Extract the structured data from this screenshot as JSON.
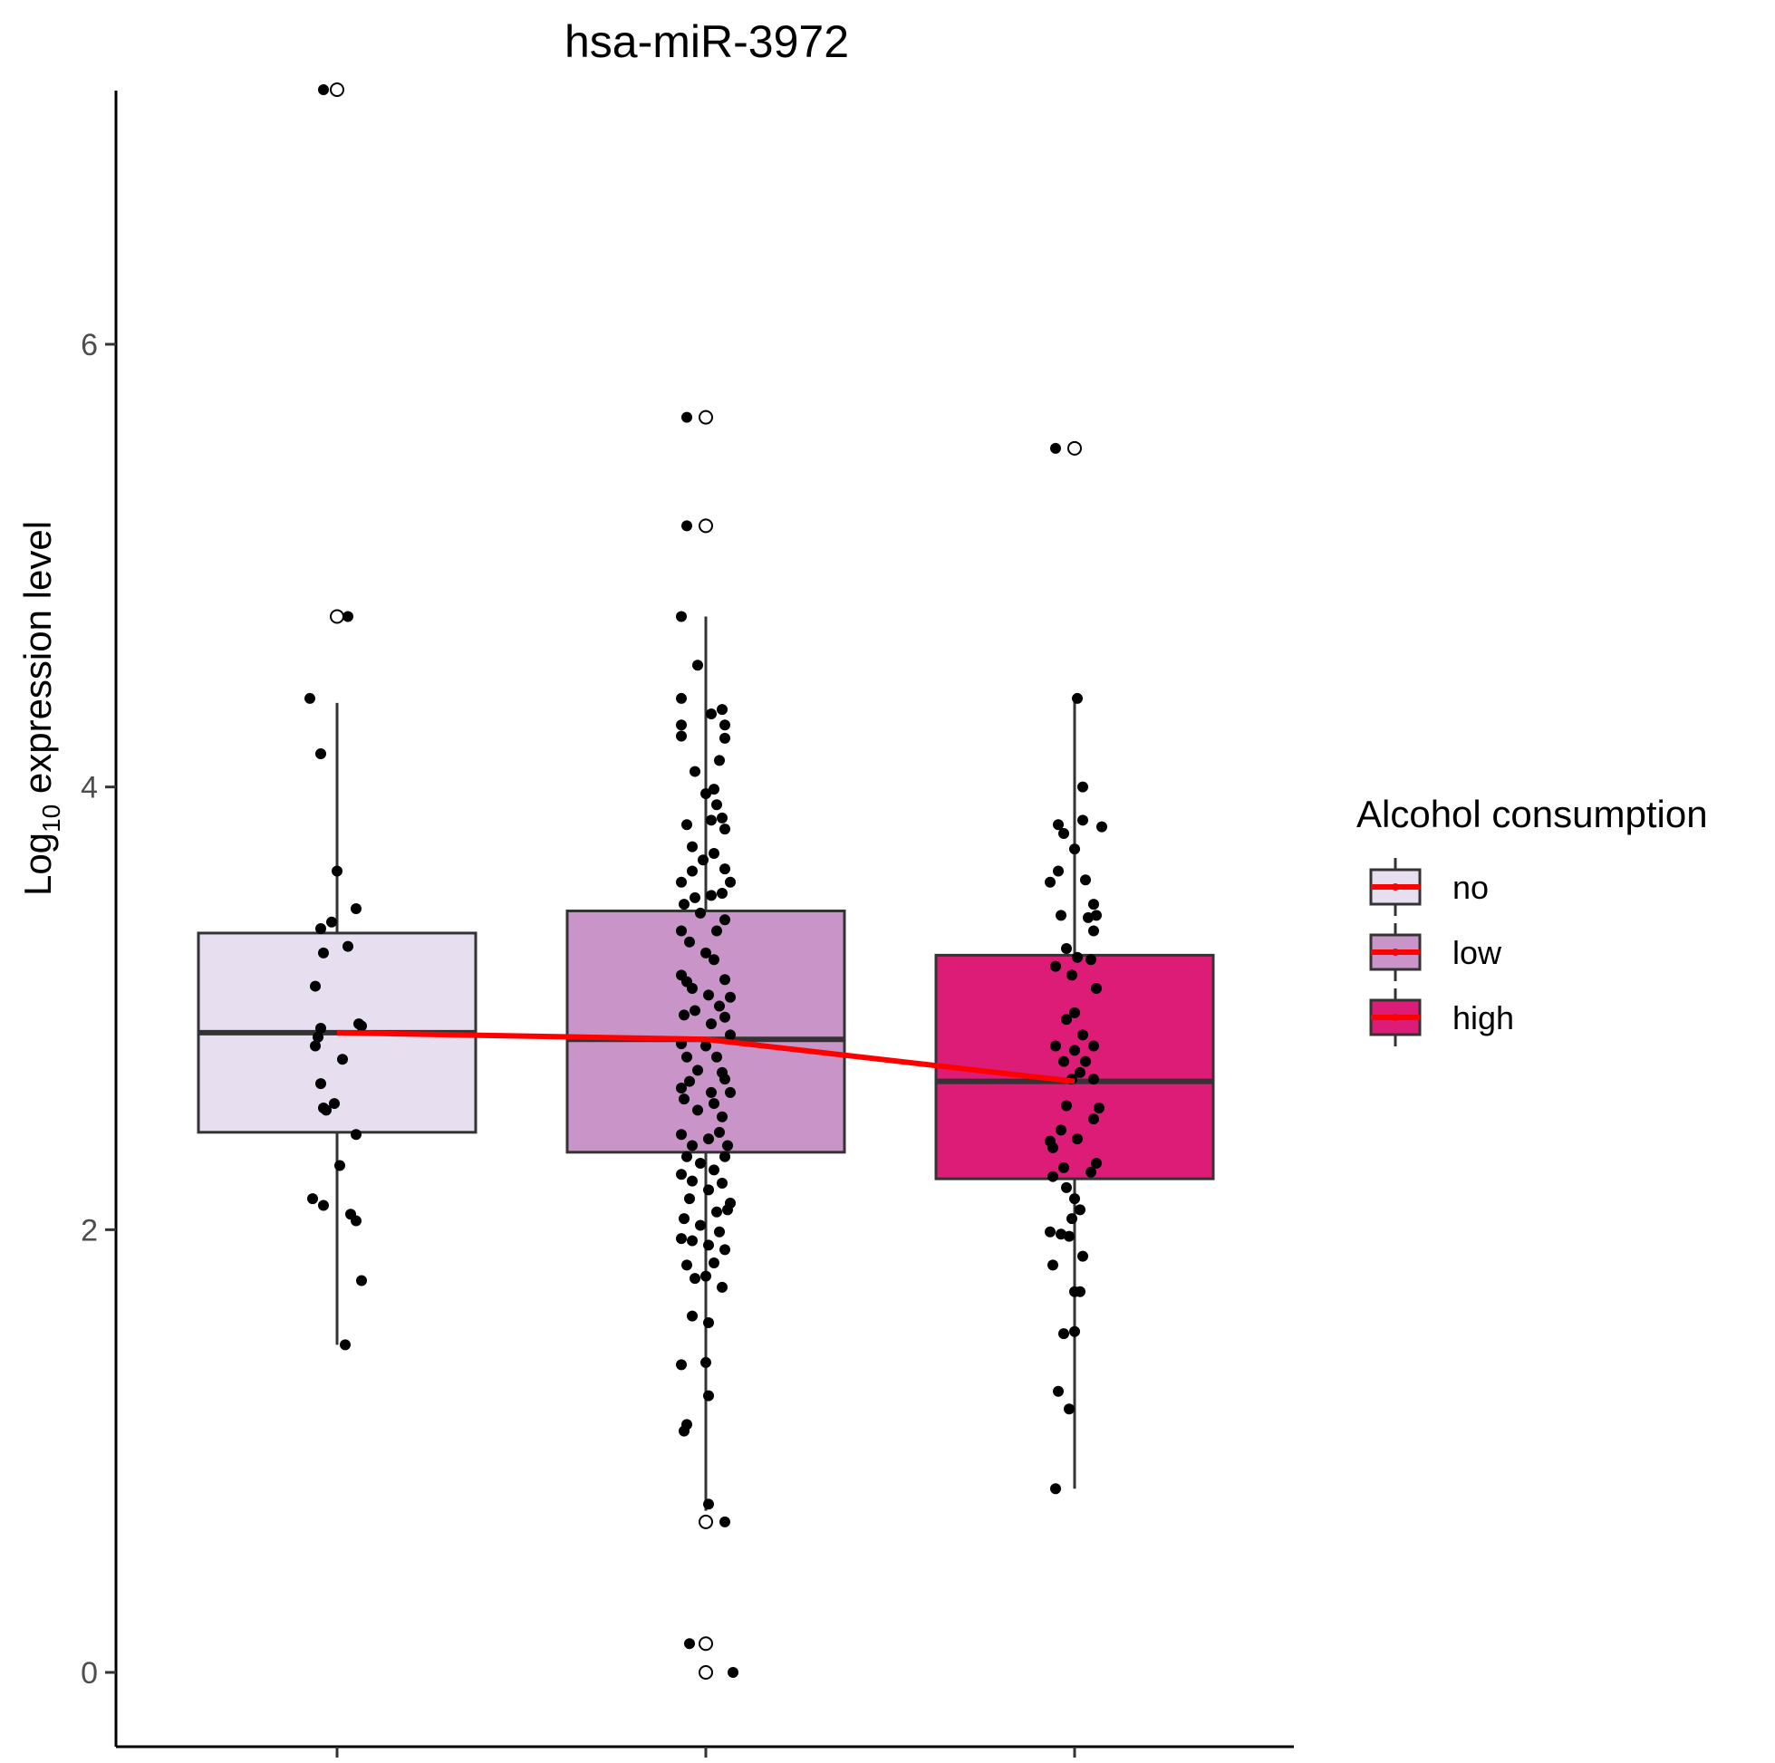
{
  "chart_data": {
    "type": "box",
    "title": "hsa-miR-3972",
    "ylabel_prefix": "Log",
    "ylabel_sub": "10",
    "ylabel_suffix": " expression level",
    "xlabel": "",
    "ylim": [
      -0.35,
      7.35
    ],
    "yticks": [
      0,
      2,
      4,
      6
    ],
    "categories": [
      "no",
      "low",
      "high"
    ],
    "colors": {
      "no": "#e7dfef",
      "low": "#c994c7",
      "high": "#dd1c77",
      "box_border": "#333333",
      "median_line": "#333333",
      "trend_line": "#ff0000",
      "points": "#000000"
    },
    "boxes": [
      {
        "category": "no",
        "q1": 2.44,
        "median": 2.89,
        "q3": 3.34,
        "whisker_low": 1.48,
        "whisker_high": 4.38
      },
      {
        "category": "low",
        "q1": 2.35,
        "median": 2.86,
        "q3": 3.44,
        "whisker_low": 0.73,
        "whisker_high": 4.77
      },
      {
        "category": "high",
        "q1": 2.23,
        "median": 2.67,
        "q3": 3.24,
        "whisker_low": 0.83,
        "whisker_high": 4.4
      }
    ],
    "outliers": [
      {
        "category": "no",
        "values": [
          7.15,
          4.77
        ]
      },
      {
        "category": "low",
        "values": [
          5.67,
          5.18,
          0.68,
          0.13,
          0.0
        ]
      },
      {
        "category": "high",
        "values": [
          5.53
        ]
      }
    ],
    "trend": {
      "categories": [
        "no",
        "low",
        "high"
      ],
      "values": [
        2.89,
        2.86,
        2.67
      ]
    },
    "points": {
      "no": [
        [
          -0.05,
          7.15
        ],
        [
          0.04,
          4.77
        ],
        [
          -0.1,
          4.4
        ],
        [
          -0.06,
          4.15
        ],
        [
          0.0,
          3.62
        ],
        [
          0.07,
          3.45
        ],
        [
          -0.06,
          3.36
        ],
        [
          -0.02,
          3.39
        ],
        [
          -0.05,
          3.25
        ],
        [
          0.04,
          3.28
        ],
        [
          -0.08,
          3.1
        ],
        [
          -0.06,
          2.91
        ],
        [
          0.09,
          2.92
        ],
        [
          0.08,
          2.93
        ],
        [
          -0.08,
          2.83
        ],
        [
          -0.07,
          2.87
        ],
        [
          0.02,
          2.77
        ],
        [
          -0.06,
          2.66
        ],
        [
          -0.05,
          2.55
        ],
        [
          -0.04,
          2.54
        ],
        [
          -0.01,
          2.57
        ],
        [
          0.07,
          2.43
        ],
        [
          0.01,
          2.29
        ],
        [
          -0.09,
          2.14
        ],
        [
          -0.05,
          2.11
        ],
        [
          0.05,
          2.07
        ],
        [
          0.07,
          2.04
        ],
        [
          0.09,
          1.77
        ],
        [
          0.03,
          1.48
        ]
      ],
      "low": [
        [
          -0.07,
          5.67
        ],
        [
          -0.07,
          5.18
        ],
        [
          -0.09,
          4.77
        ],
        [
          -0.03,
          4.55
        ],
        [
          -0.09,
          4.4
        ],
        [
          -0.09,
          4.23
        ],
        [
          -0.09,
          4.28
        ],
        [
          -0.04,
          4.07
        ],
        [
          0.02,
          4.33
        ],
        [
          0.06,
          4.35
        ],
        [
          0.07,
          4.22
        ],
        [
          0.05,
          4.12
        ],
        [
          0.07,
          4.28
        ],
        [
          0.0,
          3.97
        ],
        [
          0.03,
          3.99
        ],
        [
          0.04,
          3.92
        ],
        [
          -0.07,
          3.83
        ],
        [
          -0.05,
          3.73
        ],
        [
          0.02,
          3.85
        ],
        [
          0.06,
          3.86
        ],
        [
          0.07,
          3.81
        ],
        [
          0.03,
          3.7
        ],
        [
          0.07,
          3.63
        ],
        [
          -0.05,
          3.62
        ],
        [
          0.06,
          3.52
        ],
        [
          0.09,
          3.57
        ],
        [
          -0.09,
          3.57
        ],
        [
          -0.08,
          3.47
        ],
        [
          -0.04,
          3.5
        ],
        [
          0.02,
          3.51
        ],
        [
          -0.01,
          3.67
        ],
        [
          -0.02,
          3.43
        ],
        [
          0.04,
          3.35
        ],
        [
          -0.06,
          3.3
        ],
        [
          0.07,
          3.4
        ],
        [
          -0.09,
          3.35
        ],
        [
          0.0,
          3.25
        ],
        [
          0.03,
          3.22
        ],
        [
          0.07,
          3.13
        ],
        [
          -0.07,
          3.12
        ],
        [
          -0.09,
          3.15
        ],
        [
          -0.05,
          3.09
        ],
        [
          0.01,
          3.06
        ],
        [
          0.05,
          3.01
        ],
        [
          0.09,
          3.05
        ],
        [
          -0.08,
          2.97
        ],
        [
          -0.04,
          2.99
        ],
        [
          0.02,
          2.93
        ],
        [
          0.07,
          2.96
        ],
        [
          0.09,
          2.88
        ],
        [
          -0.09,
          2.84
        ],
        [
          -0.07,
          2.78
        ],
        [
          0.0,
          2.83
        ],
        [
          0.04,
          2.78
        ],
        [
          -0.03,
          2.72
        ],
        [
          0.06,
          2.71
        ],
        [
          -0.09,
          2.64
        ],
        [
          -0.06,
          2.67
        ],
        [
          0.02,
          2.62
        ],
        [
          0.07,
          2.68
        ],
        [
          0.09,
          2.62
        ],
        [
          -0.08,
          2.59
        ],
        [
          -0.03,
          2.54
        ],
        [
          0.03,
          2.57
        ],
        [
          0.06,
          2.51
        ],
        [
          -0.09,
          2.43
        ],
        [
          -0.05,
          2.38
        ],
        [
          0.01,
          2.41
        ],
        [
          0.05,
          2.44
        ],
        [
          0.08,
          2.38
        ],
        [
          -0.07,
          2.33
        ],
        [
          -0.02,
          2.3
        ],
        [
          0.03,
          2.27
        ],
        [
          0.07,
          2.33
        ],
        [
          -0.09,
          2.25
        ],
        [
          -0.05,
          2.22
        ],
        [
          0.01,
          2.18
        ],
        [
          0.06,
          2.21
        ],
        [
          0.09,
          2.12
        ],
        [
          -0.06,
          2.14
        ],
        [
          0.04,
          2.08
        ],
        [
          0.08,
          2.09
        ],
        [
          -0.08,
          2.05
        ],
        [
          -0.02,
          2.02
        ],
        [
          0.05,
          1.99
        ],
        [
          -0.09,
          1.96
        ],
        [
          -0.05,
          1.95
        ],
        [
          0.01,
          1.93
        ],
        [
          0.07,
          1.91
        ],
        [
          -0.07,
          1.84
        ],
        [
          0.03,
          1.85
        ],
        [
          0.06,
          1.74
        ],
        [
          -0.04,
          1.78
        ],
        [
          0.0,
          1.79
        ],
        [
          -0.05,
          1.61
        ],
        [
          0.01,
          1.58
        ],
        [
          0.0,
          1.4
        ],
        [
          -0.09,
          1.39
        ],
        [
          0.01,
          1.25
        ],
        [
          -0.07,
          1.12
        ],
        [
          -0.08,
          1.09
        ],
        [
          0.01,
          0.76
        ],
        [
          0.07,
          0.68
        ],
        [
          -0.06,
          0.13
        ],
        [
          0.1,
          0.0
        ]
      ],
      "high": [
        [
          -0.07,
          5.53
        ],
        [
          0.01,
          4.4
        ],
        [
          0.03,
          4.0
        ],
        [
          -0.06,
          3.83
        ],
        [
          -0.04,
          3.79
        ],
        [
          0.03,
          3.85
        ],
        [
          0.1,
          3.82
        ],
        [
          0.0,
          3.72
        ],
        [
          -0.06,
          3.62
        ],
        [
          -0.09,
          3.57
        ],
        [
          0.04,
          3.58
        ],
        [
          0.07,
          3.47
        ],
        [
          0.05,
          3.41
        ],
        [
          0.08,
          3.42
        ],
        [
          -0.05,
          3.42
        ],
        [
          0.07,
          3.35
        ],
        [
          -0.03,
          3.27
        ],
        [
          0.01,
          3.23
        ],
        [
          0.06,
          3.22
        ],
        [
          -0.07,
          3.19
        ],
        [
          -0.01,
          3.15
        ],
        [
          0.08,
          3.09
        ],
        [
          0.0,
          2.98
        ],
        [
          -0.03,
          2.95
        ],
        [
          0.03,
          2.88
        ],
        [
          -0.07,
          2.83
        ],
        [
          0.07,
          2.83
        ],
        [
          0.0,
          2.81
        ],
        [
          0.04,
          2.76
        ],
        [
          -0.04,
          2.76
        ],
        [
          0.02,
          2.71
        ],
        [
          0.07,
          2.68
        ],
        [
          -0.01,
          2.68
        ],
        [
          -0.03,
          2.56
        ],
        [
          0.09,
          2.55
        ],
        [
          0.07,
          2.5
        ],
        [
          -0.05,
          2.45
        ],
        [
          -0.09,
          2.4
        ],
        [
          0.01,
          2.41
        ],
        [
          -0.08,
          2.37
        ],
        [
          0.08,
          2.3
        ],
        [
          -0.04,
          2.28
        ],
        [
          0.06,
          2.26
        ],
        [
          -0.08,
          2.24
        ],
        [
          -0.03,
          2.19
        ],
        [
          0.0,
          2.14
        ],
        [
          0.02,
          2.09
        ],
        [
          -0.01,
          2.05
        ],
        [
          -0.09,
          1.99
        ],
        [
          -0.05,
          1.98
        ],
        [
          -0.02,
          1.97
        ],
        [
          0.03,
          1.88
        ],
        [
          -0.08,
          1.84
        ],
        [
          0.0,
          1.72
        ],
        [
          0.02,
          1.72
        ],
        [
          -0.04,
          1.53
        ],
        [
          0.0,
          1.54
        ],
        [
          -0.06,
          1.27
        ],
        [
          -0.02,
          1.19
        ],
        [
          -0.07,
          0.83
        ]
      ]
    },
    "legend": {
      "title": "Alcohol consumption",
      "position": "right",
      "items": [
        "no",
        "low",
        "high"
      ]
    }
  }
}
